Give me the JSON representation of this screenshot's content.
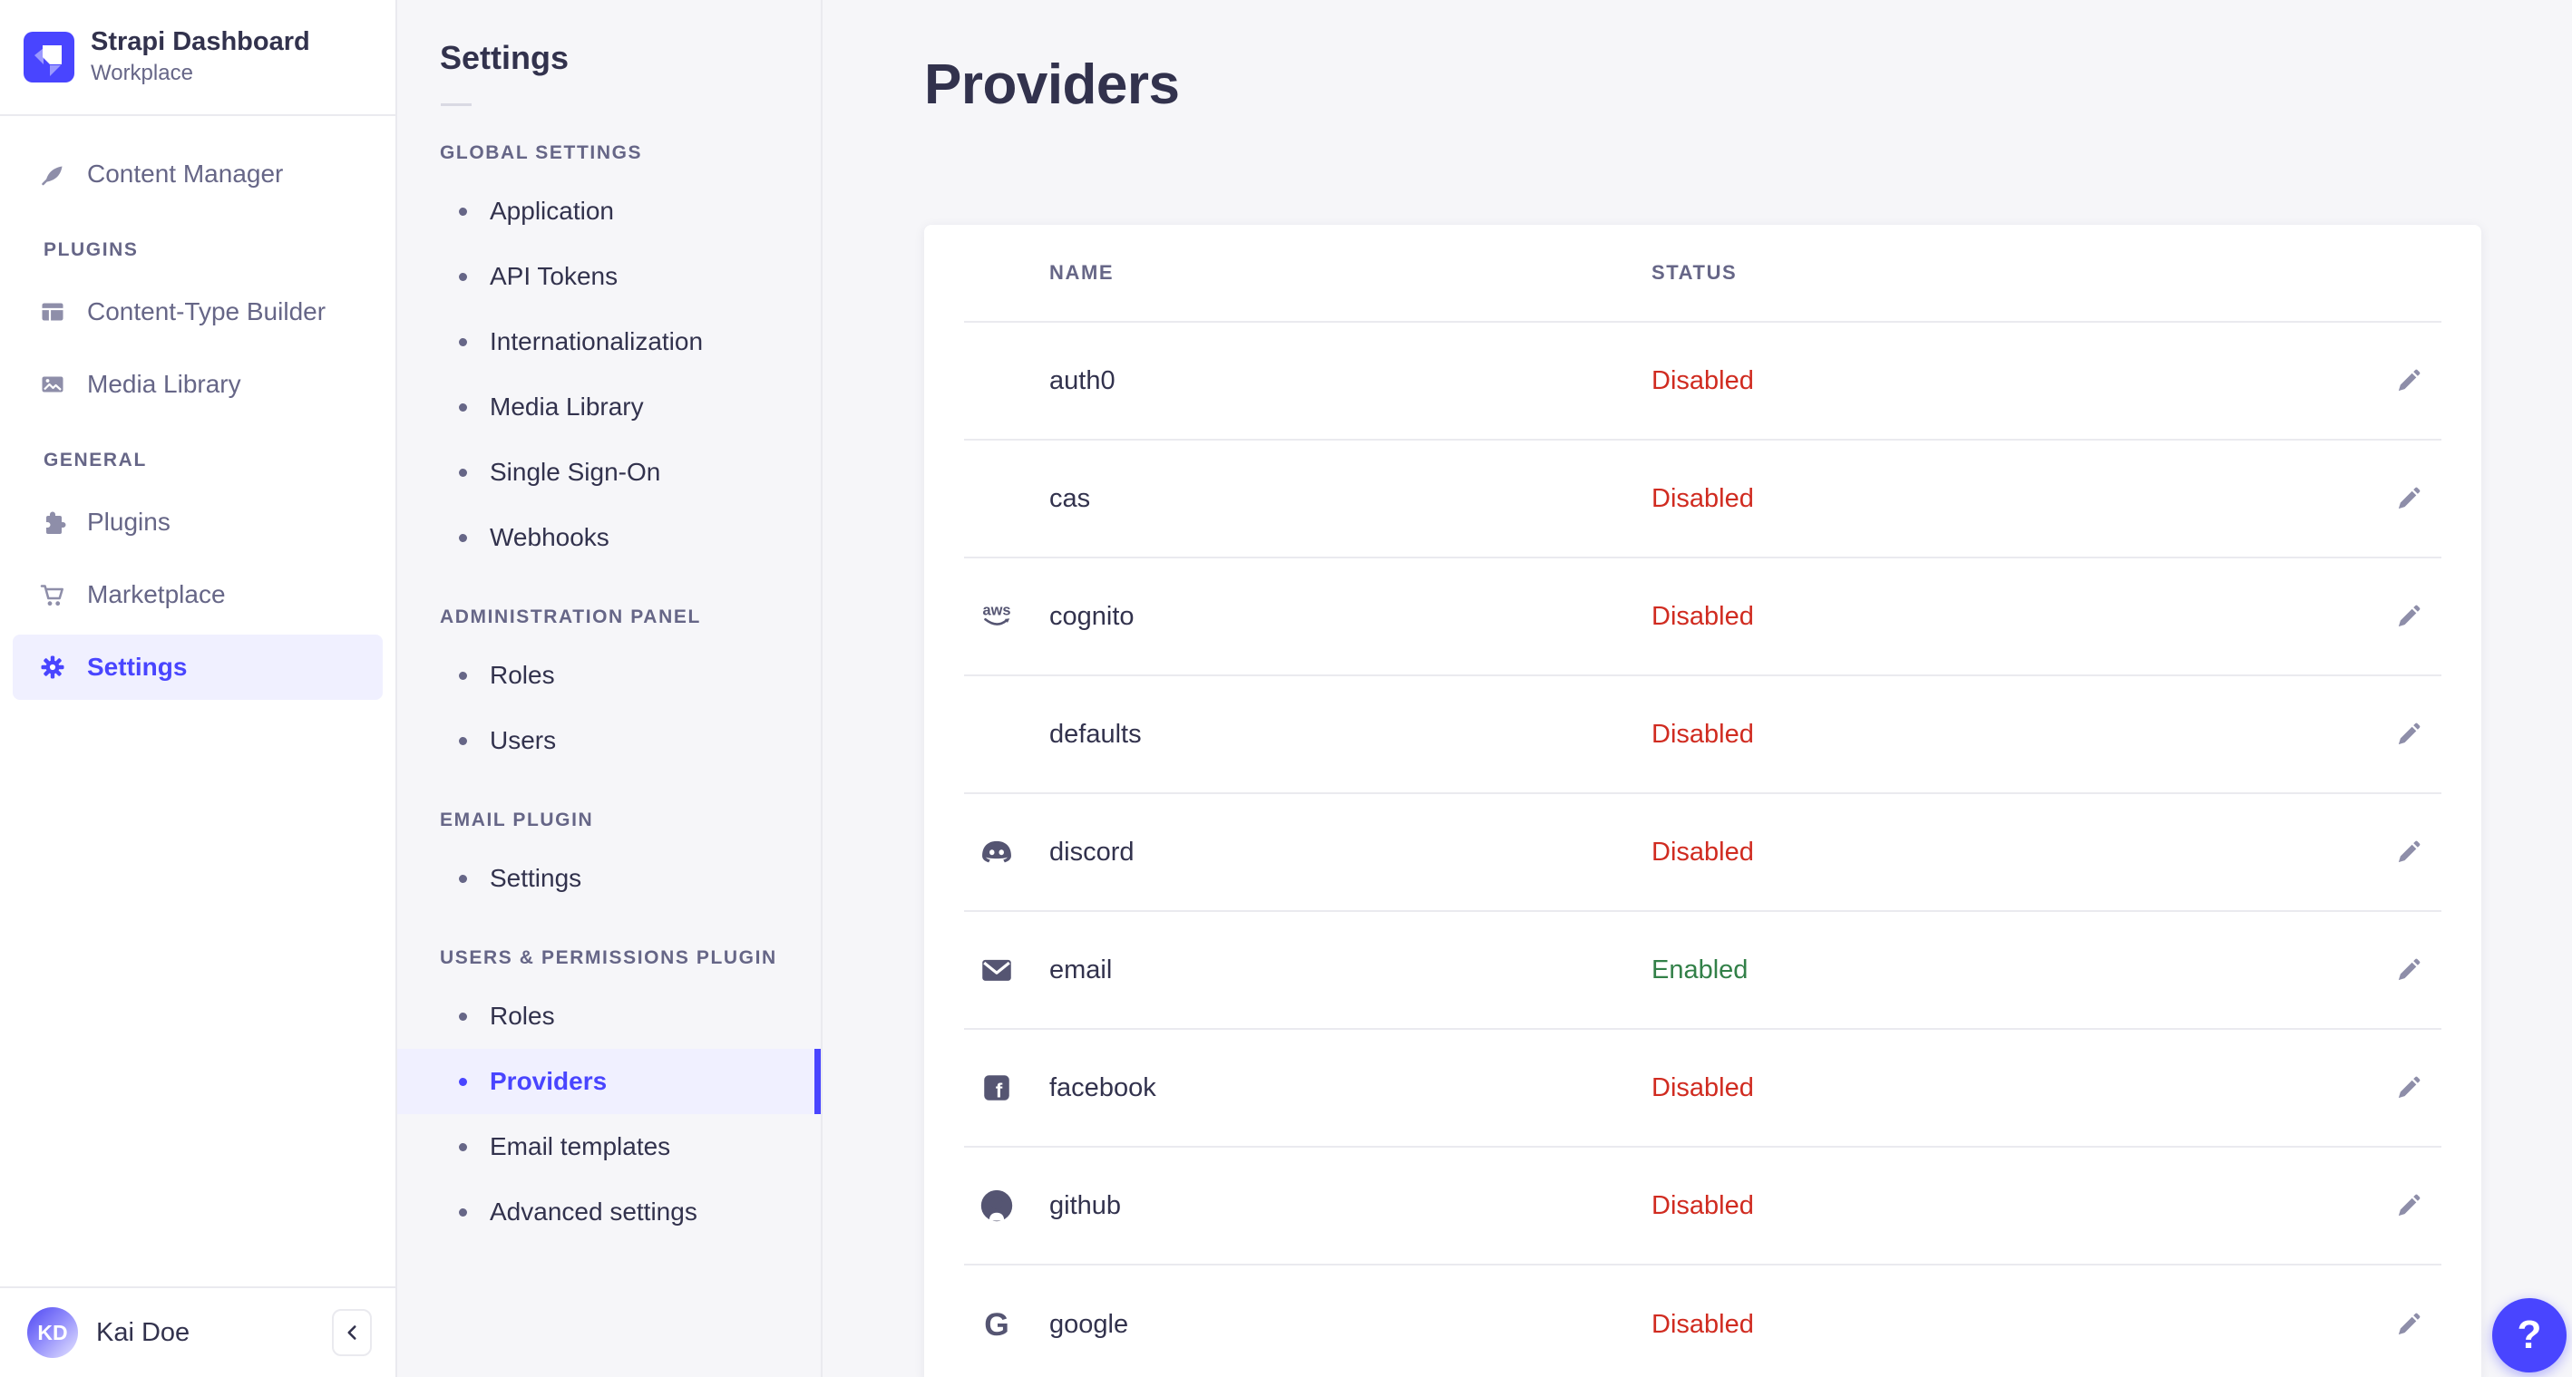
{
  "colors": {
    "accent": "#4945ff",
    "accent_bg": "#f0f0ff",
    "danger": "#d02b20",
    "success": "#328048",
    "text": "#32324d",
    "text_muted": "#666687",
    "icon_muted": "#8e8ea9",
    "border": "#eaeaef",
    "page_bg": "#f6f6f9"
  },
  "app": {
    "title": "Strapi Dashboard",
    "subtitle": "Workplace",
    "logo_icon": "strapi-logo-icon",
    "user": {
      "initials": "KD",
      "name": "Kai Doe"
    },
    "collapse_icon": "chevron-left-icon"
  },
  "sidebar": {
    "top_items": [
      {
        "label": "Content Manager",
        "icon": "content-manager-icon",
        "active": false
      }
    ],
    "sections": [
      {
        "label": "PLUGINS",
        "items": [
          {
            "label": "Content-Type Builder",
            "icon": "content-type-builder-icon",
            "active": false
          },
          {
            "label": "Media Library",
            "icon": "media-library-icon",
            "active": false
          }
        ]
      },
      {
        "label": "GENERAL",
        "items": [
          {
            "label": "Plugins",
            "icon": "puzzle-icon",
            "active": false
          },
          {
            "label": "Marketplace",
            "icon": "cart-icon",
            "active": false
          },
          {
            "label": "Settings",
            "icon": "gear-icon",
            "active": true
          }
        ]
      }
    ]
  },
  "subnav": {
    "title": "Settings",
    "sections": [
      {
        "label": "GLOBAL SETTINGS",
        "items": [
          {
            "label": "Application",
            "active": false
          },
          {
            "label": "API Tokens",
            "active": false
          },
          {
            "label": "Internationalization",
            "active": false
          },
          {
            "label": "Media Library",
            "active": false
          },
          {
            "label": "Single Sign-On",
            "active": false
          },
          {
            "label": "Webhooks",
            "active": false
          }
        ]
      },
      {
        "label": "ADMINISTRATION PANEL",
        "items": [
          {
            "label": "Roles",
            "active": false
          },
          {
            "label": "Users",
            "active": false
          }
        ]
      },
      {
        "label": "EMAIL PLUGIN",
        "items": [
          {
            "label": "Settings",
            "active": false
          }
        ]
      },
      {
        "label": "USERS & PERMISSIONS PLUGIN",
        "items": [
          {
            "label": "Roles",
            "active": false
          },
          {
            "label": "Providers",
            "active": true
          },
          {
            "label": "Email templates",
            "active": false
          },
          {
            "label": "Advanced settings",
            "active": false
          }
        ]
      }
    ]
  },
  "main": {
    "title": "Providers",
    "table": {
      "columns": [
        "NAME",
        "STATUS"
      ],
      "edit_icon": "pencil-icon",
      "rows": [
        {
          "name": "auth0",
          "icon": null,
          "status": "Disabled"
        },
        {
          "name": "cas",
          "icon": null,
          "status": "Disabled"
        },
        {
          "name": "cognito",
          "icon": "aws-icon",
          "status": "Disabled"
        },
        {
          "name": "defaults",
          "icon": null,
          "status": "Disabled"
        },
        {
          "name": "discord",
          "icon": "discord-icon",
          "status": "Disabled"
        },
        {
          "name": "email",
          "icon": "envelope-icon",
          "status": "Enabled"
        },
        {
          "name": "facebook",
          "icon": "facebook-icon",
          "status": "Disabled"
        },
        {
          "name": "github",
          "icon": "github-icon",
          "status": "Disabled"
        },
        {
          "name": "google",
          "icon": "google-icon",
          "status": "Disabled"
        }
      ]
    }
  },
  "help": {
    "label": "?"
  }
}
